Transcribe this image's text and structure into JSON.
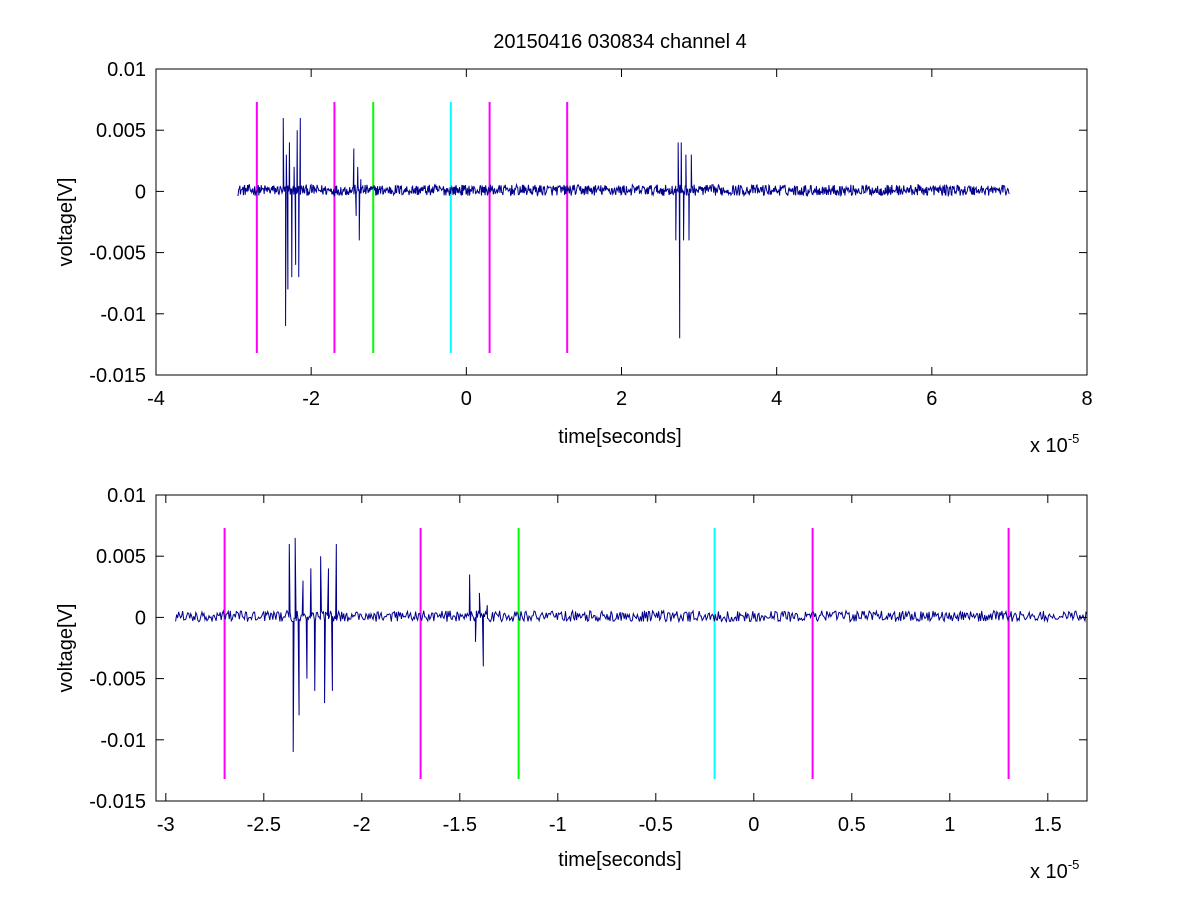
{
  "figure": {
    "title": "20150416 030834 channel 4"
  },
  "chart_data": [
    {
      "type": "line",
      "xlabel": "time[seconds]",
      "ylabel": "voltage[V]",
      "x_exponent_label": "x 10",
      "x_exponent_sup": "-5",
      "xlim": [
        -4,
        8
      ],
      "ylim": [
        -0.015,
        0.01
      ],
      "x_ticks": [
        -4,
        -2,
        0,
        2,
        4,
        6,
        8
      ],
      "x_tick_labels": [
        "-4",
        "-2",
        "0",
        "2",
        "4",
        "6",
        "8"
      ],
      "y_ticks": [
        -0.015,
        -0.01,
        -0.005,
        0,
        0.005,
        0.01
      ],
      "y_tick_labels": [
        "-0.015",
        "-0.01",
        "-0.005",
        "0",
        "0.005",
        "0.01"
      ],
      "grid": false,
      "signal_color": "#00008b",
      "signal_x_range": [
        -2.95,
        7.0
      ],
      "signal_bursts": [
        {
          "x": [
            -2.36,
            -2.33,
            -2.32,
            -2.3,
            -2.28,
            -2.25,
            -2.22,
            -2.2,
            -2.18,
            -2.16,
            -2.14
          ],
          "y": [
            0.006,
            -0.011,
            0.003,
            -0.008,
            0.004,
            -0.007,
            0.002,
            -0.006,
            0.005,
            -0.007,
            0.006
          ]
        },
        {
          "x": [
            -1.45,
            -1.42,
            -1.4,
            -1.38,
            -1.36
          ],
          "y": [
            0.0035,
            -0.002,
            0.002,
            -0.004,
            0.001
          ]
        },
        {
          "x": [
            2.7,
            2.73,
            2.75,
            2.77,
            2.8,
            2.83,
            2.87,
            2.9
          ],
          "y": [
            -0.004,
            0.004,
            -0.012,
            0.004,
            -0.004,
            0.003,
            -0.004,
            0.003
          ]
        }
      ],
      "markers": [
        {
          "x": -2.7,
          "color": "#ff00ff"
        },
        {
          "x": -1.7,
          "color": "#ff00ff"
        },
        {
          "x": -1.2,
          "color": "#00ff00"
        },
        {
          "x": -0.2,
          "color": "#00ffff"
        },
        {
          "x": 0.3,
          "color": "#ff00ff"
        },
        {
          "x": 1.3,
          "color": "#ff00ff"
        }
      ],
      "marker_y_range": [
        -0.0132,
        0.0073
      ]
    },
    {
      "type": "line",
      "xlabel": "time[seconds]",
      "ylabel": "voltage[V]",
      "x_exponent_label": "x 10",
      "x_exponent_sup": "-5",
      "xlim": [
        -3.05,
        1.7
      ],
      "ylim": [
        -0.015,
        0.01
      ],
      "x_ticks": [
        -3,
        -2.5,
        -2,
        -1.5,
        -1,
        -0.5,
        0,
        0.5,
        1,
        1.5
      ],
      "x_tick_labels": [
        "-3",
        "-2.5",
        "-2",
        "-1.5",
        "-1",
        "-0.5",
        "0",
        "0.5",
        "1",
        "1.5"
      ],
      "y_ticks": [
        -0.015,
        -0.01,
        -0.005,
        0,
        0.005,
        0.01
      ],
      "y_tick_labels": [
        "-0.015",
        "-0.01",
        "-0.005",
        "0",
        "0.005",
        "0.01"
      ],
      "grid": false,
      "signal_color": "#00008b",
      "signal_x_range": [
        -2.95,
        1.7
      ],
      "signal_bursts": [
        {
          "x": [
            -2.37,
            -2.35,
            -2.34,
            -2.32,
            -2.3,
            -2.28,
            -2.26,
            -2.24,
            -2.21,
            -2.19,
            -2.17,
            -2.15,
            -2.13
          ],
          "y": [
            0.006,
            -0.011,
            0.0065,
            -0.008,
            0.003,
            -0.005,
            0.004,
            -0.006,
            0.005,
            -0.007,
            0.004,
            -0.006,
            0.006
          ]
        },
        {
          "x": [
            -1.45,
            -1.42,
            -1.4,
            -1.38,
            -1.36
          ],
          "y": [
            0.0035,
            -0.002,
            0.002,
            -0.004,
            0.001
          ]
        }
      ],
      "markers": [
        {
          "x": -2.7,
          "color": "#ff00ff"
        },
        {
          "x": -1.7,
          "color": "#ff00ff"
        },
        {
          "x": -1.2,
          "color": "#00ff00"
        },
        {
          "x": -0.2,
          "color": "#00ffff"
        },
        {
          "x": 0.3,
          "color": "#ff00ff"
        },
        {
          "x": 1.3,
          "color": "#ff00ff"
        }
      ],
      "marker_y_range": [
        -0.0132,
        0.0073
      ]
    }
  ]
}
